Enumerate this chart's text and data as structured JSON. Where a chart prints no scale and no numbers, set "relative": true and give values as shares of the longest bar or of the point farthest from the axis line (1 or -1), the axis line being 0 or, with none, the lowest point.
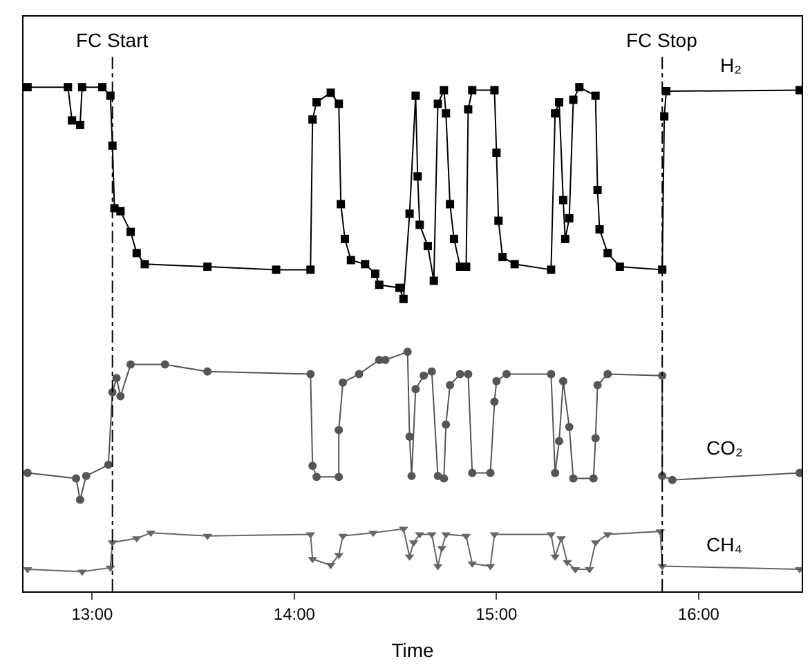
{
  "chart_data": {
    "type": "line",
    "relative": true,
    "xlabel": "Time",
    "xlim": [
      12.66,
      16.51
    ],
    "xticks": [
      {
        "value": 13,
        "label": "13:00"
      },
      {
        "value": 14,
        "label": "14:00"
      },
      {
        "value": 15,
        "label": "15:00"
      },
      {
        "value": 16,
        "label": "16:00"
      }
    ],
    "legend": false,
    "ref_lines": [
      {
        "axis": "x",
        "value": 13.1,
        "label": "FC Start",
        "color": "#000000",
        "line_style": "dashed"
      },
      {
        "axis": "x",
        "value": 15.82,
        "label": "FC Stop",
        "color": "#000000",
        "line_style": "dashed"
      }
    ],
    "series": [
      {
        "name": "H₂",
        "color": "#000000",
        "marker": "square",
        "x": [
          12.68,
          12.88,
          12.9,
          12.94,
          12.95,
          13.05,
          13.09,
          13.1,
          13.11,
          13.14,
          13.19,
          13.22,
          13.26,
          13.57,
          13.91,
          14.08,
          14.09,
          14.11,
          14.18,
          14.22,
          14.23,
          14.25,
          14.28,
          14.35,
          14.4,
          14.42,
          14.52,
          14.54,
          14.57,
          14.6,
          14.61,
          14.62,
          14.66,
          14.69,
          14.71,
          14.74,
          14.75,
          14.77,
          14.79,
          14.82,
          14.85,
          14.86,
          14.88,
          14.99,
          15.0,
          15.01,
          15.03,
          15.09,
          15.27,
          15.29,
          15.31,
          15.33,
          15.34,
          15.36,
          15.38,
          15.41,
          15.49,
          15.5,
          15.51,
          15.55,
          15.61,
          15.82,
          15.83,
          15.84,
          16.5
        ],
        "values": [
          1,
          1,
          0.934,
          0.925,
          1,
          1,
          0.983,
          0.884,
          0.76,
          0.754,
          0.713,
          0.671,
          0.649,
          0.644,
          0.638,
          0.638,
          0.936,
          0.97,
          0.989,
          0.967,
          0.768,
          0.699,
          0.657,
          0.649,
          0.63,
          0.608,
          0.602,
          0.58,
          0.749,
          0.983,
          0.823,
          0.727,
          0.685,
          0.616,
          0.967,
          0.994,
          0.948,
          0.768,
          0.699,
          0.644,
          0.644,
          0.956,
          0.994,
          0.994,
          0.87,
          0.735,
          0.663,
          0.649,
          0.638,
          0.948,
          0.97,
          0.776,
          0.699,
          0.74,
          0.975,
          1,
          0.983,
          0.796,
          0.718,
          0.671,
          0.644,
          0.638,
          0.942,
          0.992,
          0.994
        ]
      },
      {
        "name": "CO₂",
        "color": "#555555",
        "marker": "circle",
        "x": [
          12.68,
          12.92,
          12.94,
          12.97,
          13.08,
          13.1,
          13.12,
          13.14,
          13.19,
          13.36,
          13.57,
          14.08,
          14.09,
          14.11,
          14.22,
          14.22,
          14.24,
          14.32,
          14.42,
          14.45,
          14.56,
          14.57,
          14.58,
          14.6,
          14.64,
          14.68,
          14.71,
          14.74,
          14.75,
          14.77,
          14.82,
          14.86,
          14.88,
          14.97,
          14.99,
          15.0,
          15.05,
          15.27,
          15.29,
          15.31,
          15.33,
          15.36,
          15.38,
          15.48,
          15.49,
          15.5,
          15.55,
          15.82,
          15.82,
          15.87,
          16.5
        ],
        "values": [
          0.235,
          0.224,
          0.182,
          0.229,
          0.251,
          0.395,
          0.423,
          0.387,
          0.45,
          0.45,
          0.436,
          0.431,
          0.249,
          0.227,
          0.227,
          0.32,
          0.414,
          0.431,
          0.459,
          0.459,
          0.475,
          0.307,
          0.229,
          0.401,
          0.428,
          0.436,
          0.229,
          0.224,
          0.331,
          0.409,
          0.431,
          0.431,
          0.235,
          0.235,
          0.376,
          0.417,
          0.431,
          0.431,
          0.235,
          0.298,
          0.417,
          0.326,
          0.224,
          0.224,
          0.304,
          0.409,
          0.431,
          0.428,
          0.229,
          0.221,
          0.235
        ]
      },
      {
        "name": "CH₄",
        "color": "#666666",
        "marker": "triangle",
        "x": [
          12.68,
          12.95,
          13.09,
          13.1,
          13.22,
          13.29,
          13.57,
          14.08,
          14.09,
          14.18,
          14.22,
          14.24,
          14.39,
          14.54,
          14.57,
          14.59,
          14.62,
          14.68,
          14.71,
          14.73,
          14.75,
          14.85,
          14.88,
          14.97,
          14.99,
          15.27,
          15.29,
          15.32,
          15.35,
          15.39,
          15.46,
          15.49,
          15.55,
          15.81,
          15.82,
          16.5
        ],
        "values": [
          0.044,
          0.039,
          0.047,
          0.097,
          0.105,
          0.116,
          0.11,
          0.113,
          0.064,
          0.052,
          0.072,
          0.11,
          0.116,
          0.124,
          0.069,
          0.097,
          0.113,
          0.113,
          0.05,
          0.086,
          0.113,
          0.11,
          0.055,
          0.05,
          0.113,
          0.113,
          0.069,
          0.105,
          0.058,
          0.044,
          0.044,
          0.097,
          0.113,
          0.119,
          0.05,
          0.044
        ]
      }
    ]
  }
}
